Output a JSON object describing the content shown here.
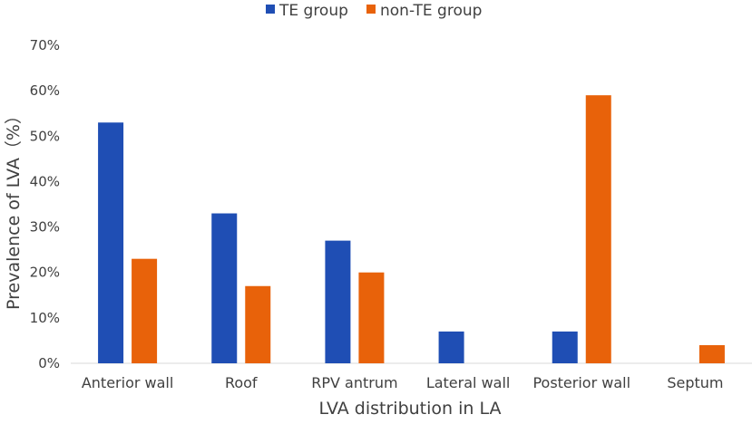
{
  "chart_data": {
    "type": "bar",
    "title": "",
    "xlabel": "LVA distribution in LA",
    "ylabel": "Prevalence of LVA（%）",
    "ylim": [
      0,
      70
    ],
    "yticks": [
      0,
      10,
      20,
      30,
      40,
      50,
      60,
      70
    ],
    "ytick_labels": [
      "0%",
      "10%",
      "20%",
      "30%",
      "40%",
      "50%",
      "60%",
      "70%"
    ],
    "grid": false,
    "legend_position": "top",
    "categories": [
      "Anterior wall",
      "Roof",
      "RPV antrum",
      "Lateral wall",
      "Posterior wall",
      "Septum"
    ],
    "series": [
      {
        "name": "TE group",
        "color": "#1F4EB4",
        "values": [
          53,
          33,
          27,
          7,
          7,
          0
        ]
      },
      {
        "name": "non-TE group",
        "color": "#E8620A",
        "values": [
          23,
          17,
          20,
          0,
          59,
          4
        ]
      }
    ]
  }
}
